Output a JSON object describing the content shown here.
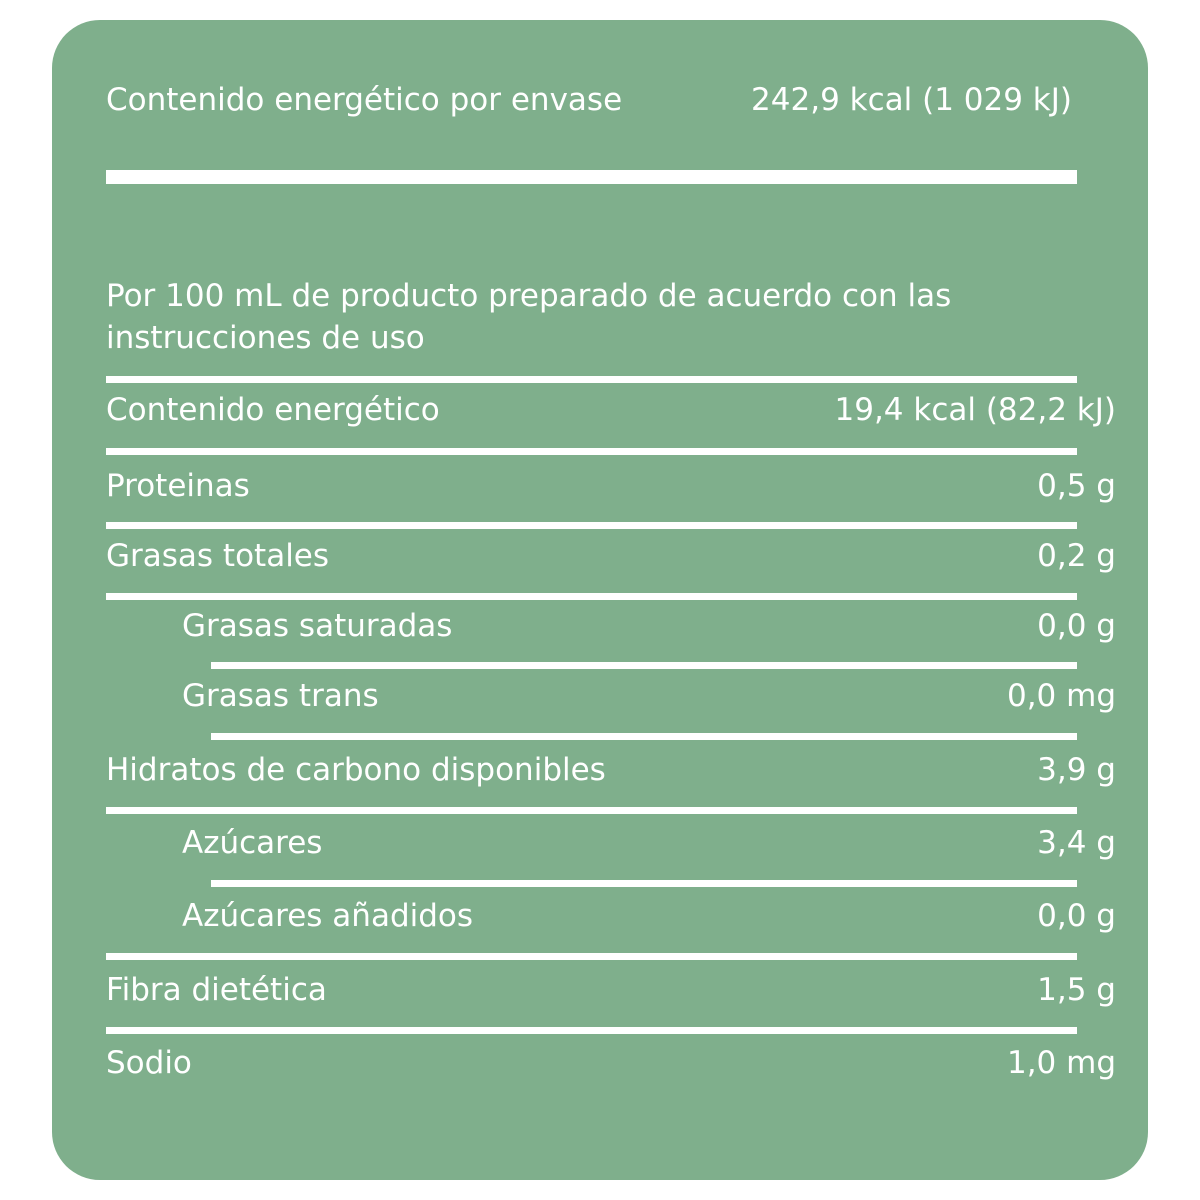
{
  "header": {
    "label": "Contenido energético por envase",
    "value": "242,9 kcal (1 029 kJ)"
  },
  "note": "Por 100 mL de producto preparado de acuerdo con las instrucciones de uso",
  "rows": [
    {
      "label": "Contenido energético",
      "value": "19,4 kcal (82,2 kJ)"
    },
    {
      "label": "Proteinas",
      "value": "0,5 g"
    },
    {
      "label": "Grasas totales",
      "value": "0,2 g"
    },
    {
      "label": "Grasas saturadas",
      "value": "0,0 g"
    },
    {
      "label": "Grasas trans",
      "value": "0,0 mg"
    },
    {
      "label": "Hidratos de carbono disponibles",
      "value": "3,9 g"
    },
    {
      "label": "Azúcares",
      "value": "3,4 g"
    },
    {
      "label": "Azúcares añadidos",
      "value": "0,0 g"
    },
    {
      "label": "Fibra dietética",
      "value": "1,5 g"
    },
    {
      "label": "Sodio",
      "value": "1,0 mg"
    }
  ],
  "colors": {
    "panel": "#7faf8c",
    "text": "#ffffff",
    "background": "#ffffff"
  }
}
